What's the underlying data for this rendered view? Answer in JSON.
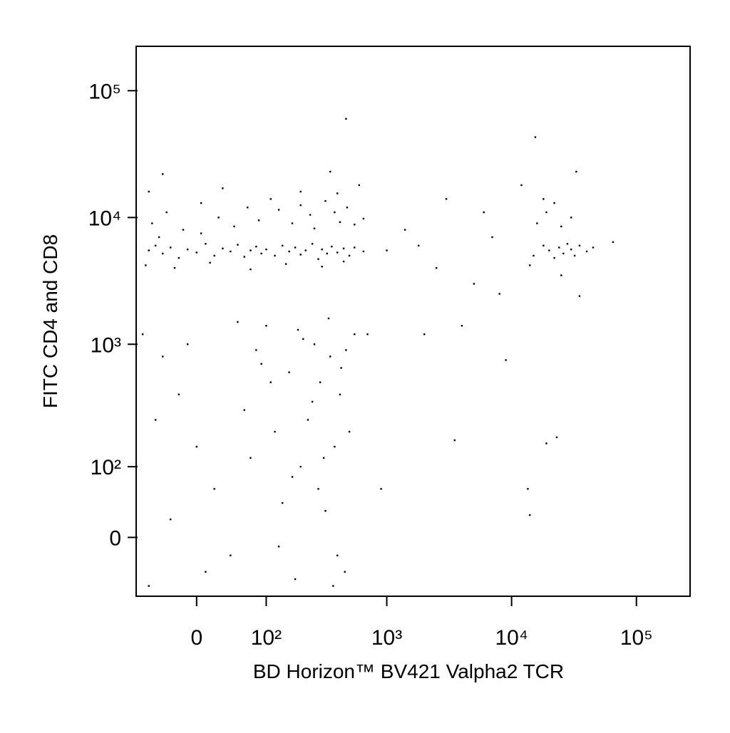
{
  "chart_data": {
    "type": "scatter",
    "x_label": "BD Horizon™ BV421 Valpha2 TCR",
    "y_label": "FITC CD4 and CD8",
    "scale": "biexponential",
    "xlim": [
      -79,
      269000
    ],
    "ylim": [
      -77,
      224000
    ],
    "xticks": [
      0,
      {
        "value": 100,
        "label": "10²"
      },
      {
        "value": 1000,
        "label": "10³"
      },
      {
        "value": 10000,
        "label": "10⁴"
      },
      {
        "value": 100000,
        "label": "10⁵"
      }
    ],
    "yticks": [
      0,
      {
        "value": 100,
        "label": "10²"
      },
      {
        "value": 1000,
        "label": "10³"
      },
      {
        "value": 10000,
        "label": "10⁴"
      },
      {
        "value": 100000,
        "label": "10⁵"
      }
    ],
    "series": [
      {
        "color": "#000000",
        "x": [
          -60,
          -50,
          -40,
          -30,
          -20,
          -10,
          0,
          10,
          20,
          30,
          40,
          50,
          60,
          70,
          80,
          90,
          100,
          120,
          140,
          160,
          180,
          200,
          220,
          250,
          280,
          300,
          330,
          360,
          400,
          450,
          500,
          550,
          650,
          -65,
          -25,
          15,
          70,
          150,
          300,
          450,
          -45,
          5,
          -55,
          -35,
          -15,
          5,
          25,
          45,
          65,
          85,
          110,
          130,
          170,
          200,
          240,
          260,
          320,
          380,
          420,
          480,
          550,
          650,
          -60,
          30,
          200,
          400,
          -70,
          -40,
          -20,
          0,
          20,
          40,
          60,
          80,
          100,
          120,
          140,
          160,
          180,
          200,
          230,
          260,
          290,
          320,
          350,
          380,
          420,
          460,
          500,
          550,
          -60,
          -30,
          10,
          50,
          90,
          130,
          170,
          210,
          250,
          310,
          370,
          430,
          -50,
          -10,
          70,
          110,
          190,
          280,
          340,
          400,
          470,
          700,
          900,
          1000,
          1400,
          1800,
          2000,
          2500,
          3000,
          3500,
          4000,
          5000,
          6000,
          7000,
          8000,
          9000,
          12000,
          15000,
          18000,
          20000,
          22000,
          24000,
          26000,
          28000,
          30000,
          32000,
          35000,
          40000,
          45000,
          65000,
          14000,
          25000,
          35000,
          16000,
          19000,
          22000,
          25000,
          18000,
          30000,
          33000,
          15500,
          19000,
          23000,
          13500,
          14000,
          470,
          600,
          350,
          -40
        ],
        "values": [
          5500,
          6000,
          5200,
          5800,
          4800,
          5600,
          5300,
          6200,
          5000,
          5700,
          5400,
          6100,
          4900,
          5500,
          5900,
          5200,
          5600,
          5000,
          6000,
          5400,
          5800,
          5100,
          5500,
          6200,
          4700,
          5600,
          5200,
          5900,
          5300,
          5700,
          5000,
          5800,
          5400,
          4200,
          4000,
          4400,
          3900,
          4300,
          4100,
          4500,
          7000,
          7500,
          9000,
          11000,
          8000,
          13000,
          10000,
          8500,
          12000,
          9500,
          14000,
          11500,
          9000,
          12500,
          10500,
          8200,
          13500,
          11000,
          9200,
          12000,
          8800,
          9800,
          16000,
          17000,
          16000,
          15500,
          1200,
          800,
          400,
          150,
          60,
          -20,
          300,
          900,
          1400,
          200,
          40,
          600,
          -50,
          100,
          250,
          1000,
          500,
          30,
          800,
          150,
          400,
          -40,
          200,
          1200,
          -60,
          20,
          -40,
          1500,
          700,
          -10,
          80,
          1100,
          350,
          120,
          -60,
          650,
          250,
          1000,
          120,
          500,
          1300,
          60,
          1600,
          -20,
          900,
          1200,
          60,
          5500,
          8000,
          6000,
          1200,
          4000,
          14000,
          170,
          1400,
          3000,
          11000,
          7000,
          2500,
          750,
          18000,
          5000,
          6000,
          5500,
          4800,
          5800,
          5200,
          6200,
          5600,
          5000,
          6000,
          5400,
          5800,
          6400,
          4200,
          3500,
          2400,
          9000,
          11000,
          13000,
          8500,
          14000,
          10000,
          23000,
          43000,
          160,
          180,
          60,
          25,
          60000,
          18000,
          23000,
          22000
        ]
      }
    ]
  }
}
